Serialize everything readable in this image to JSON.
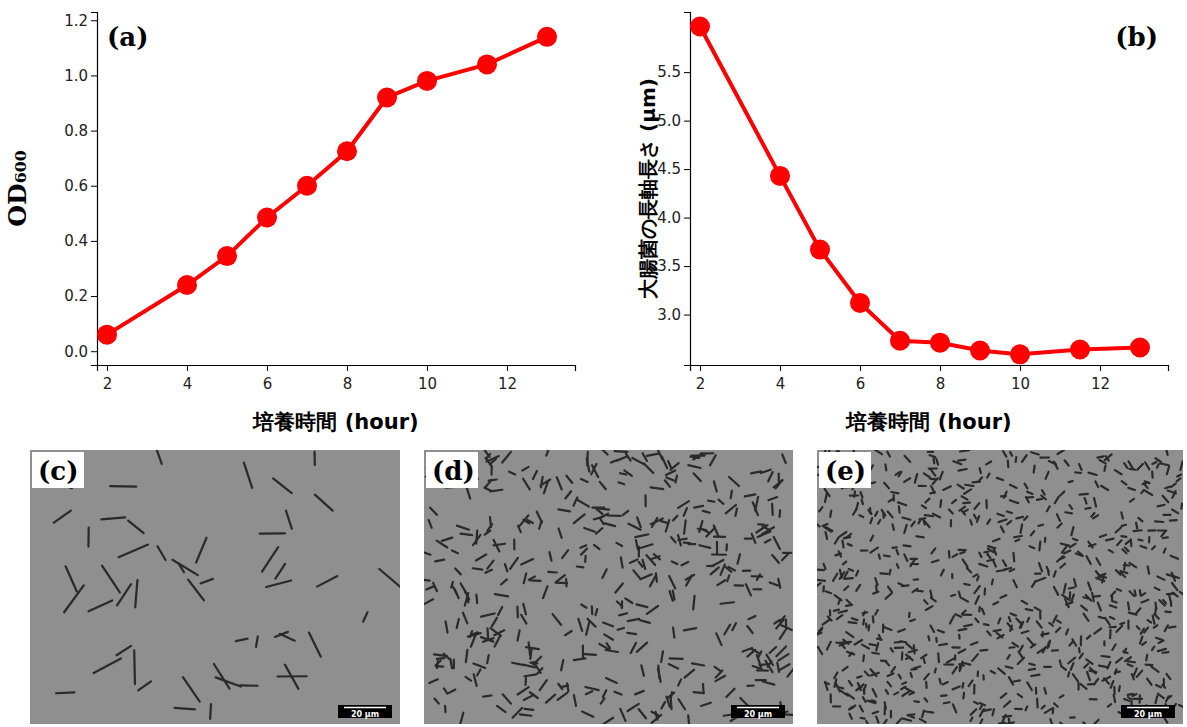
{
  "chart_data": [
    {
      "type": "line",
      "title": "(a)",
      "x_label": "培養時間 (hour)",
      "y_label": "OD₆₀₀",
      "x": [
        2,
        4,
        5,
        6,
        7,
        8,
        9,
        10,
        11.5,
        13
      ],
      "values": [
        0.06,
        0.24,
        0.345,
        0.485,
        0.6,
        0.725,
        0.92,
        0.98,
        1.04,
        1.14
      ],
      "color": "#ff0000",
      "marker": "circle",
      "xlim": [
        1.75,
        13.7
      ],
      "ylim": [
        -0.05,
        1.23
      ],
      "xticks": [
        2,
        4,
        6,
        8,
        10,
        12
      ],
      "yticks": [
        {
          "value": 0,
          "label": "0.0"
        },
        0.2,
        0.4,
        0.6,
        0.8,
        {
          "value": 1,
          "label": "1.0"
        },
        1.2
      ]
    },
    {
      "type": "line",
      "title": "(b)",
      "x_label": "培養時間 (hour)",
      "y_label": "大腸菌の長軸長さ (μm)",
      "x": [
        2,
        4,
        5,
        6,
        7,
        8,
        9,
        10,
        11.5,
        13
      ],
      "values": [
        5.97,
        4.43,
        3.67,
        3.12,
        2.73,
        2.71,
        2.63,
        2.59,
        2.64,
        2.66
      ],
      "color": "#ff0000",
      "marker": "circle",
      "xlim": [
        1.75,
        13.7
      ],
      "ylim": [
        2.48,
        6.12
      ],
      "xticks": [
        2,
        4,
        6,
        8,
        10,
        12
      ],
      "yticks": [
        {
          "value": 3,
          "label": "3.0"
        },
        3.5,
        {
          "value": 4,
          "label": "4.0"
        },
        4.5,
        {
          "value": 5,
          "label": "5.0"
        },
        5.5
      ]
    }
  ],
  "images": [
    {
      "label": "(c)",
      "scale_bar": "20 μm"
    },
    {
      "label": "(d)",
      "scale_bar": "20 μm"
    },
    {
      "label": "(e)",
      "scale_bar": "20 μm"
    }
  ]
}
